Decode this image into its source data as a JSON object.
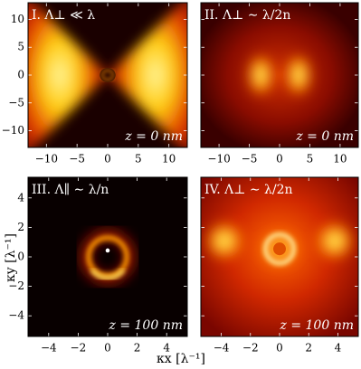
{
  "panels": [
    {
      "label": "I. Λ⊥ ≪ λ",
      "annotation": "z = 0 nm"
    },
    {
      "label": "II. Λ⊥ ∼ λ/2n",
      "annotation": "z = 0 nm"
    },
    {
      "label": "III. Λ∥ ∼ λ/n",
      "annotation": "z = 100 nm"
    },
    {
      "label": "IV. Λ⊥ ∼ λ/2n",
      "annotation": "z = 100 nm"
    }
  ],
  "axes": {
    "top": {
      "xlim": [
        -13,
        13
      ],
      "ylim": [
        -13,
        13
      ],
      "xticks": [
        {
          "value": -10,
          "label": "−10"
        },
        {
          "value": -5,
          "label": "−5"
        },
        0,
        5,
        10
      ],
      "yticks": [
        {
          "value": -10,
          "label": "−10"
        },
        {
          "value": -5,
          "label": "−5"
        },
        0,
        5,
        10
      ]
    },
    "bottom": {
      "xlim": [
        -5.4,
        5.4
      ],
      "ylim": [
        -5.4,
        5.4
      ],
      "xticks": [
        {
          "value": -4,
          "label": "−4"
        },
        {
          "value": -2,
          "label": "−2"
        },
        0,
        2,
        4
      ],
      "yticks": [
        {
          "value": -4,
          "label": "−4"
        },
        {
          "value": -2,
          "label": "−2"
        },
        0,
        2,
        4
      ]
    }
  },
  "x_label": "κx [λ⁻¹]",
  "y_label": "κy [λ⁻¹]"
}
